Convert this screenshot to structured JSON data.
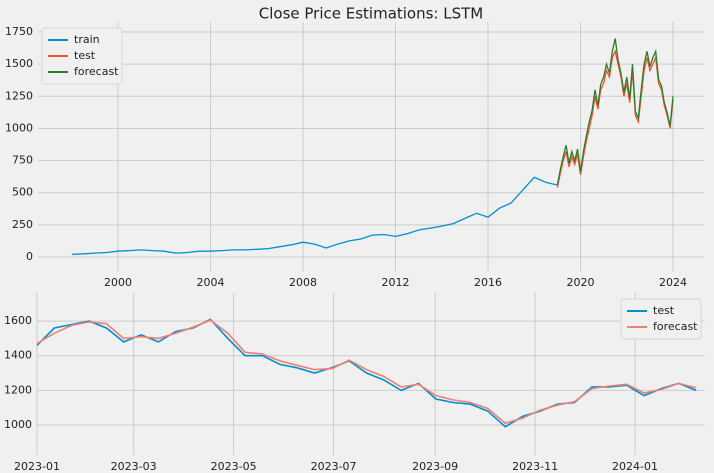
{
  "chart_data": [
    {
      "type": "line",
      "title": "Close Price Estimations: LSTM",
      "xlim": [
        1996.54,
        2025.34
      ],
      "xticks": [
        2000,
        2004,
        2008,
        2012,
        2016,
        2020,
        2024
      ],
      "ylim": [
        -109,
        1828
      ],
      "yticks": [
        0,
        250,
        500,
        750,
        1000,
        1250,
        1500,
        1750
      ],
      "grid": true,
      "legend": "upper left",
      "series": [
        {
          "name": "train",
          "color": "#008fd5",
          "x": [
            1998,
            1998.5,
            1999,
            1999.5,
            2000,
            2000.5,
            2001,
            2001.5,
            2002,
            2002.5,
            2003,
            2003.5,
            2004,
            2004.5,
            2005,
            2005.5,
            2006,
            2006.5,
            2007,
            2007.5,
            2008,
            2008.5,
            2009,
            2009.5,
            2010,
            2010.5,
            2011,
            2011.5,
            2012,
            2012.5,
            2013,
            2013.5,
            2014,
            2014.5,
            2015,
            2015.5,
            2016,
            2016.5,
            2017,
            2017.5,
            2018,
            2018.5,
            2019
          ],
          "values": [
            20,
            25,
            30,
            35,
            45,
            50,
            55,
            50,
            45,
            30,
            35,
            45,
            45,
            50,
            55,
            55,
            60,
            65,
            80,
            95,
            115,
            100,
            70,
            100,
            125,
            140,
            170,
            175,
            160,
            180,
            210,
            225,
            240,
            260,
            300,
            340,
            310,
            380,
            420,
            520,
            620,
            580,
            560
          ]
        },
        {
          "name": "test",
          "color": "#fc4f30",
          "x": [
            2019,
            2019.125,
            2019.25,
            2019.375,
            2019.5,
            2019.625,
            2019.75,
            2019.875,
            2020,
            2020.125,
            2020.25,
            2020.375,
            2020.5,
            2020.625,
            2020.75,
            2020.875,
            2021,
            2021.125,
            2021.25,
            2021.375,
            2021.5,
            2021.625,
            2021.75,
            2021.875,
            2022,
            2022.125,
            2022.25,
            2022.375,
            2022.5,
            2022.625,
            2022.75,
            2022.875,
            2023,
            2023.125,
            2023.25,
            2023.375,
            2023.5,
            2023.625,
            2023.75,
            2023.875,
            2024
          ],
          "values": [
            540,
            650,
            750,
            820,
            700,
            780,
            720,
            800,
            640,
            780,
            900,
            1000,
            1100,
            1250,
            1150,
            1300,
            1350,
            1450,
            1400,
            1550,
            1600,
            1500,
            1400,
            1250,
            1350,
            1200,
            1450,
            1100,
            1050,
            1250,
            1450,
            1550,
            1450,
            1500,
            1550,
            1350,
            1300,
            1180,
            1100,
            1000,
            1220
          ]
        },
        {
          "name": "forecast",
          "color": "#2c7a2c",
          "x": [
            2019,
            2019.125,
            2019.25,
            2019.375,
            2019.5,
            2019.625,
            2019.75,
            2019.875,
            2020,
            2020.125,
            2020.25,
            2020.375,
            2020.5,
            2020.625,
            2020.75,
            2020.875,
            2021,
            2021.125,
            2021.25,
            2021.375,
            2021.5,
            2021.625,
            2021.75,
            2021.875,
            2022,
            2022.125,
            2022.25,
            2022.375,
            2022.5,
            2022.625,
            2022.75,
            2022.875,
            2023,
            2023.125,
            2023.25,
            2023.375,
            2023.5,
            2023.625,
            2023.75,
            2023.875,
            2024
          ],
          "values": [
            560,
            680,
            780,
            870,
            730,
            820,
            750,
            840,
            660,
            820,
            940,
            1050,
            1140,
            1300,
            1180,
            1340,
            1400,
            1500,
            1430,
            1600,
            1700,
            1530,
            1430,
            1280,
            1400,
            1230,
            1500,
            1130,
            1080,
            1300,
            1500,
            1600,
            1480,
            1550,
            1600,
            1380,
            1330,
            1200,
            1120,
            1020,
            1250
          ]
        }
      ]
    },
    {
      "type": "line",
      "xlim": [
        2023.0,
        2024.117
      ],
      "xticks": [
        {
          "value": 2023.0,
          "label": "2023-01"
        },
        {
          "value": 2023.1616,
          "label": "2023-03"
        },
        {
          "value": 2023.3288,
          "label": "2023-05"
        },
        {
          "value": 2023.4959,
          "label": "2023-07"
        },
        {
          "value": 2023.6658,
          "label": "2023-09"
        },
        {
          "value": 2023.8329,
          "label": "2023-11"
        },
        {
          "value": 2024.0,
          "label": "2024-01"
        }
      ],
      "ylim": [
        827,
        1762
      ],
      "yticks": [
        1000,
        1200,
        1400,
        1600
      ],
      "grid": true,
      "legend": "upper right",
      "series": [
        {
          "name": "test",
          "color": "#008fd5",
          "x": [
            2023.0,
            2023.029,
            2023.058,
            2023.087,
            2023.116,
            2023.145,
            2023.174,
            2023.203,
            2023.232,
            2023.261,
            2023.29,
            2023.319,
            2023.348,
            2023.377,
            2023.406,
            2023.435,
            2023.464,
            2023.493,
            2023.522,
            2023.551,
            2023.58,
            2023.609,
            2023.638,
            2023.667,
            2023.696,
            2023.725,
            2023.754,
            2023.783,
            2023.812,
            2023.841,
            2023.87,
            2023.899,
            2023.928,
            2023.957,
            2023.986,
            2024.015,
            2024.044,
            2024.073,
            2024.102
          ],
          "values": [
            1460,
            1560,
            1580,
            1600,
            1560,
            1480,
            1520,
            1480,
            1540,
            1560,
            1610,
            1500,
            1400,
            1400,
            1350,
            1330,
            1300,
            1330,
            1370,
            1300,
            1260,
            1200,
            1240,
            1150,
            1130,
            1120,
            1080,
            990,
            1050,
            1080,
            1120,
            1130,
            1220,
            1220,
            1230,
            1170,
            1210,
            1240,
            1200
          ]
        },
        {
          "name": "forecast",
          "color": "#f08070",
          "x": [
            2023.0,
            2023.029,
            2023.058,
            2023.087,
            2023.116,
            2023.145,
            2023.174,
            2023.203,
            2023.232,
            2023.261,
            2023.29,
            2023.319,
            2023.348,
            2023.377,
            2023.406,
            2023.435,
            2023.464,
            2023.493,
            2023.522,
            2023.551,
            2023.58,
            2023.609,
            2023.638,
            2023.667,
            2023.696,
            2023.725,
            2023.754,
            2023.783,
            2023.812,
            2023.841,
            2023.87,
            2023.899,
            2023.928,
            2023.957,
            2023.986,
            2024.015,
            2024.044,
            2024.073,
            2024.102
          ],
          "values": [
            1470,
            1530,
            1575,
            1595,
            1585,
            1500,
            1510,
            1500,
            1530,
            1565,
            1605,
            1530,
            1420,
            1410,
            1370,
            1345,
            1320,
            1325,
            1375,
            1320,
            1280,
            1220,
            1235,
            1170,
            1145,
            1130,
            1095,
            1010,
            1040,
            1085,
            1115,
            1135,
            1210,
            1225,
            1235,
            1185,
            1205,
            1240,
            1215
          ]
        }
      ]
    }
  ]
}
